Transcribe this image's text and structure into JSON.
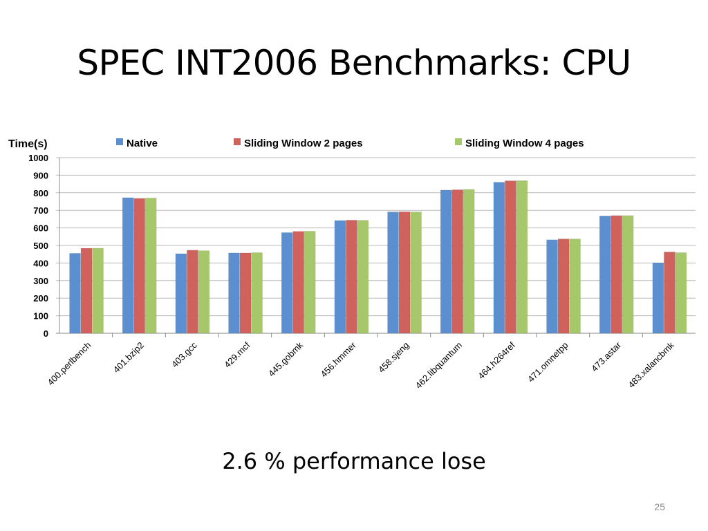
{
  "slide": {
    "title": "SPEC INT2006 Benchmarks: CPU",
    "caption": "2.6 % performance lose",
    "page_number": "25"
  },
  "chart_data": {
    "type": "bar",
    "title": "",
    "ylabel": "Time(s)",
    "xlabel": "",
    "ylim": [
      0,
      1000
    ],
    "yticks": [
      0,
      100,
      200,
      300,
      400,
      500,
      600,
      700,
      800,
      900,
      1000
    ],
    "grid": true,
    "legend_position": "top",
    "categories": [
      "400.perlbench",
      "401.bzip2",
      "403.gcc",
      "429.mcf",
      "445.gobmk",
      "456.hmmer",
      "458.sjeng",
      "462.libquantum",
      "464.h264ref",
      "471.omnetpp",
      "473.astar",
      "483.xalancbmk"
    ],
    "series": [
      {
        "name": "Native",
        "color": "#5b8fd0",
        "values": [
          455,
          772,
          453,
          457,
          573,
          642,
          691,
          815,
          860,
          532,
          668,
          401
        ]
      },
      {
        "name": "Sliding Window 2 pages",
        "color": "#d0625e",
        "values": [
          484,
          768,
          473,
          457,
          580,
          644,
          692,
          817,
          868,
          537,
          670,
          463
        ]
      },
      {
        "name": "Sliding Window 4 pages",
        "color": "#a6c86a",
        "values": [
          484,
          770,
          470,
          459,
          581,
          643,
          691,
          819,
          869,
          537,
          670,
          459
        ]
      }
    ]
  }
}
